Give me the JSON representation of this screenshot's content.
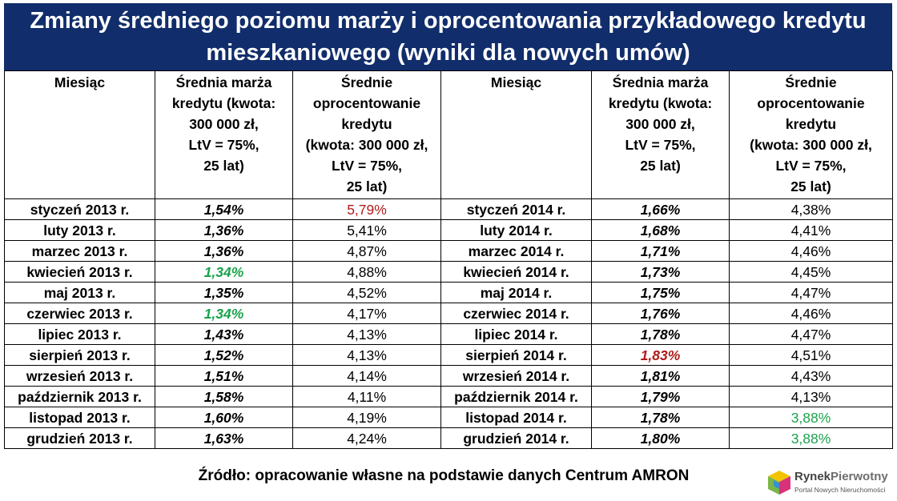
{
  "title": {
    "line1": "Zmiany średniego poziomu marży i oprocentowania przykładowego kredytu",
    "line2": "mieszkaniowego (wyniki dla nowych umów)"
  },
  "headers": {
    "month": "Miesiąc",
    "margin": [
      "Średnia marża",
      "kredytu (kwota:",
      "300 000 zł,",
      "LtV = 75%,",
      "25 lat)"
    ],
    "rate": [
      "Średnie",
      "oprocentowanie",
      "kredytu",
      "(kwota: 300 000 zł,",
      "LtV = 75%,",
      "25 lat)"
    ]
  },
  "rows": [
    {
      "m1": "styczeń 2013 r.",
      "mg1": "1,54%",
      "r1": "5,79%",
      "m2": "styczeń 2014 r.",
      "mg2": "1,66%",
      "r2": "4,38%"
    },
    {
      "m1": "luty 2013 r.",
      "mg1": "1,36%",
      "r1": "5,41%",
      "m2": "luty 2014 r.",
      "mg2": "1,68%",
      "r2": "4,41%"
    },
    {
      "m1": "marzec 2013 r.",
      "mg1": "1,36%",
      "r1": "4,87%",
      "m2": "marzec 2014 r.",
      "mg2": "1,71%",
      "r2": "4,46%"
    },
    {
      "m1": "kwiecień 2013 r.",
      "mg1": "1,34%",
      "r1": "4,88%",
      "m2": "kwiecień 2014 r.",
      "mg2": "1,73%",
      "r2": "4,45%"
    },
    {
      "m1": "maj 2013 r.",
      "mg1": "1,35%",
      "r1": "4,52%",
      "m2": "maj 2014 r.",
      "mg2": "1,75%",
      "r2": "4,47%"
    },
    {
      "m1": "czerwiec 2013 r.",
      "mg1": "1,34%",
      "r1": "4,17%",
      "m2": "czerwiec 2014 r.",
      "mg2": "1,76%",
      "r2": "4,46%"
    },
    {
      "m1": "lipiec 2013 r.",
      "mg1": "1,43%",
      "r1": "4,13%",
      "m2": "lipiec 2014 r.",
      "mg2": "1,78%",
      "r2": "4,47%"
    },
    {
      "m1": "sierpień 2013 r.",
      "mg1": "1,52%",
      "r1": "4,13%",
      "m2": "sierpień 2014 r.",
      "mg2": "1,83%",
      "r2": "4,51%"
    },
    {
      "m1": "wrzesień 2013 r.",
      "mg1": "1,51%",
      "r1": "4,14%",
      "m2": "wrzesień 2014 r.",
      "mg2": "1,81%",
      "r2": "4,43%"
    },
    {
      "m1": "październik 2013 r.",
      "mg1": "1,58%",
      "r1": "4,11%",
      "m2": "październik 2014 r.",
      "mg2": "1,79%",
      "r2": "4,13%"
    },
    {
      "m1": "listopad 2013 r.",
      "mg1": "1,60%",
      "r1": "4,19%",
      "m2": "listopad 2014 r.",
      "mg2": "1,78%",
      "r2": "3,88%"
    },
    {
      "m1": "grudzień 2013 r.",
      "mg1": "1,63%",
      "r1": "4,24%",
      "m2": "grudzień 2014 r.",
      "mg2": "1,80%",
      "r2": "3,88%"
    }
  ],
  "highlights": [
    {
      "row": 0,
      "col": "r1",
      "color": "red"
    },
    {
      "row": 3,
      "col": "mg1",
      "color": "green"
    },
    {
      "row": 5,
      "col": "mg1",
      "color": "green"
    },
    {
      "row": 7,
      "col": "mg2",
      "color": "red"
    },
    {
      "row": 10,
      "col": "r2",
      "color": "green"
    },
    {
      "row": 11,
      "col": "r2",
      "color": "green"
    }
  ],
  "colors": {
    "title_bg": "#112d6b",
    "highlight_red": "#b01c1c",
    "highlight_green": "#1ba24c"
  },
  "source": "Źródło: opracowanie własne na podstawie danych Centrum AMRON",
  "logo": {
    "name_part1": "Rynek",
    "name_part2": "Pierwotny",
    "tagline": "Portal Nowych Nieruchomości"
  }
}
